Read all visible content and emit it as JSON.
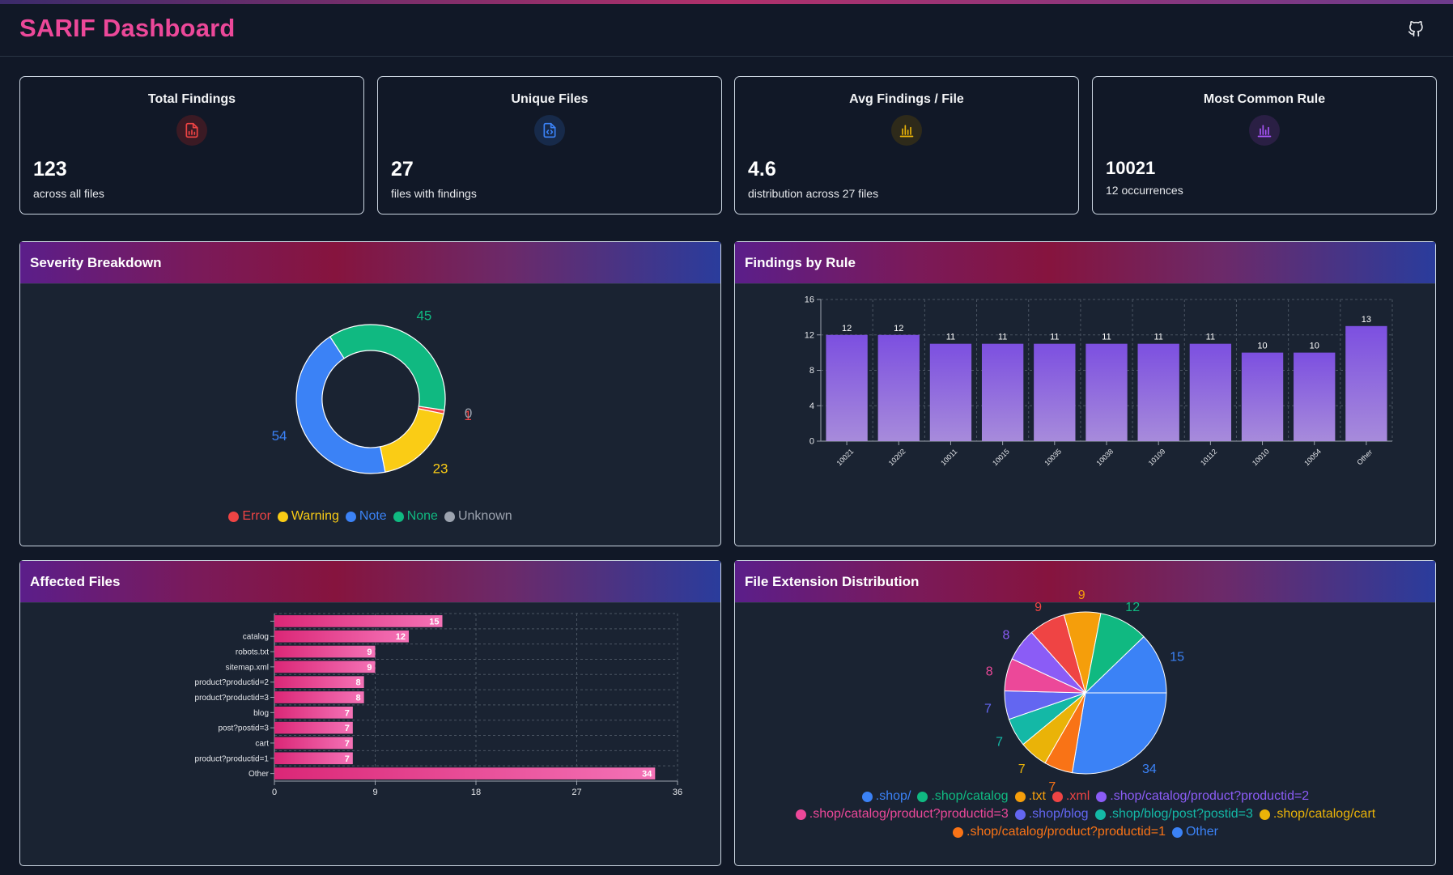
{
  "header": {
    "title": "SARIF Dashboard",
    "github_icon": "github-icon"
  },
  "stats": [
    {
      "title": "Total Findings",
      "value": "123",
      "sub": "across all files",
      "icon": "file-chart-icon",
      "color": "#ef4444",
      "bg": "#3b1a24"
    },
    {
      "title": "Unique Files",
      "value": "27",
      "sub": "files with findings",
      "icon": "file-code-icon",
      "color": "#3b82f6",
      "bg": "#172a4a"
    },
    {
      "title": "Avg Findings / File",
      "value": "4.6",
      "sub": "distribution across 27 files",
      "icon": "bar-chart-icon",
      "color": "#eab308",
      "bg": "#2e2a1a"
    },
    {
      "title": "Most Common Rule",
      "value": "10021",
      "sub": "12 occurrences",
      "icon": "bar-chart-icon",
      "color": "#a855f7",
      "bg": "#2a1f44"
    }
  ],
  "panels": {
    "severity": "Severity Breakdown",
    "rules": "Findings by Rule",
    "files": "Affected Files",
    "extensions": "File Extension Distribution"
  },
  "chart_data": [
    {
      "type": "pie",
      "variant": "donut",
      "labels": [
        "Error",
        "Warning",
        "Note",
        "None",
        "Unknown"
      ],
      "values": [
        1,
        23,
        54,
        45,
        0
      ],
      "colors": [
        "#ef4444",
        "#facc15",
        "#3b82f6",
        "#10b981",
        "#9ca3af"
      ],
      "legend": "bottom"
    },
    {
      "type": "bar",
      "categories": [
        "10021",
        "10202",
        "10011",
        "10015",
        "10035",
        "10038",
        "10109",
        "10112",
        "10010",
        "10054",
        "Other"
      ],
      "values": [
        12,
        12,
        11,
        11,
        11,
        11,
        11,
        11,
        10,
        10,
        13
      ],
      "ylim": [
        0,
        16
      ],
      "yticks": [
        0,
        4,
        8,
        12,
        16
      ],
      "grid": true,
      "color": "#8b5cf6"
    },
    {
      "type": "bar",
      "orientation": "horizontal",
      "categories": [
        "",
        "catalog",
        "robots.txt",
        "sitemap.xml",
        "product?productid=2",
        "product?productid=3",
        "blog",
        "post?postid=3",
        "cart",
        "product?productid=1",
        "Other"
      ],
      "values": [
        15,
        12,
        9,
        9,
        8,
        8,
        7,
        7,
        7,
        7,
        34
      ],
      "xlim": [
        0,
        36
      ],
      "xticks": [
        0,
        9,
        18,
        27,
        36
      ],
      "grid": true,
      "color": "#ec4899"
    },
    {
      "type": "pie",
      "labels": [
        ".shop/",
        ".shop/catalog",
        ".txt",
        ".xml",
        ".shop/catalog/product?productid=2",
        ".shop/catalog/product?productid=3",
        ".shop/blog",
        ".shop/blog/post?postid=3",
        ".shop/catalog/cart",
        ".shop/catalog/product?productid=1",
        "Other"
      ],
      "values": [
        15,
        12,
        9,
        9,
        8,
        8,
        7,
        7,
        7,
        7,
        34
      ],
      "colors": [
        "#3b82f6",
        "#10b981",
        "#f59e0b",
        "#ef4444",
        "#8b5cf6",
        "#ec4899",
        "#6366f1",
        "#14b8a6",
        "#eab308",
        "#f97316",
        "#3b82f6"
      ],
      "legend": "bottom"
    }
  ]
}
